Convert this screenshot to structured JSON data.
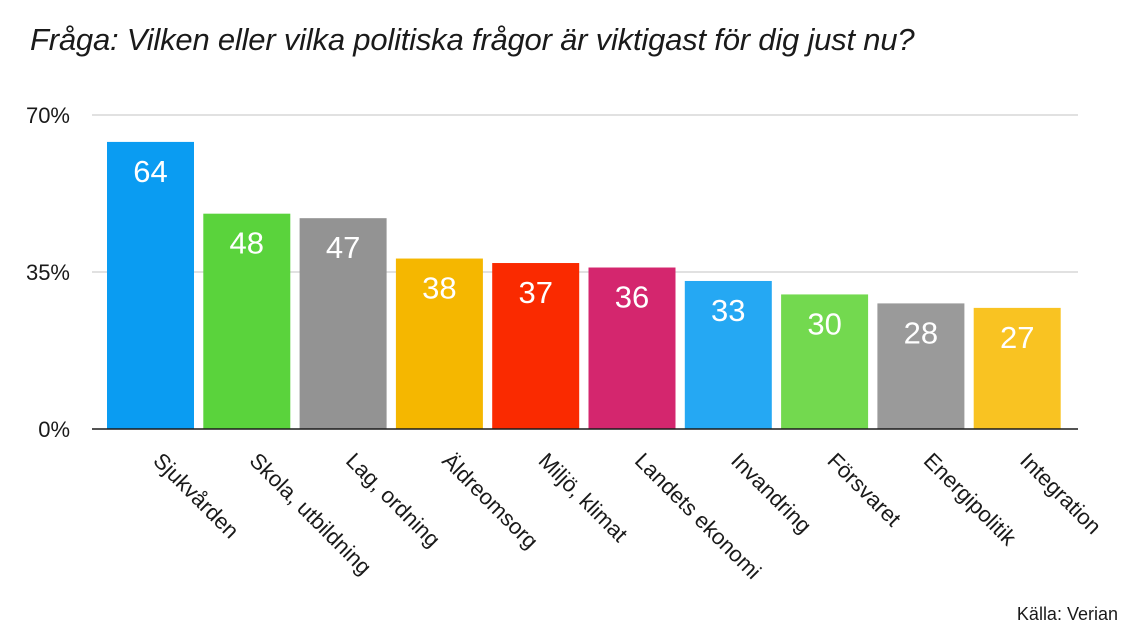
{
  "chart_data": {
    "type": "bar",
    "title": "Fråga: Vilken eller vilka politiska frågor är viktigast för dig just nu?",
    "source": "Källa: Verian",
    "categories": [
      "Sjukvården",
      "Skola, utbildning",
      "Lag, ordning",
      "Äldreomsorg",
      "Miljö, klimat",
      "Landets ekonomi",
      "Invandring",
      "Försvaret",
      "Energipolitik",
      "Integration"
    ],
    "values": [
      64,
      48,
      47,
      38,
      37,
      36,
      33,
      30,
      28,
      27
    ],
    "data_labels": [
      "64",
      "48",
      "47",
      "38",
      "37",
      "36",
      "33",
      "30",
      "28",
      "27"
    ],
    "colors": [
      "#0a9cf2",
      "#5ad33c",
      "#939393",
      "#f5b700",
      "#fa2a00",
      "#d4266e",
      "#25a8f3",
      "#73d94f",
      "#9a9a9a",
      "#f9c322"
    ],
    "yticks": [
      0,
      35,
      70
    ],
    "ytick_labels": [
      "0%",
      "35%",
      "70%"
    ],
    "ylim": [
      0,
      70
    ],
    "grid": true,
    "xlabel": "",
    "ylabel": ""
  }
}
